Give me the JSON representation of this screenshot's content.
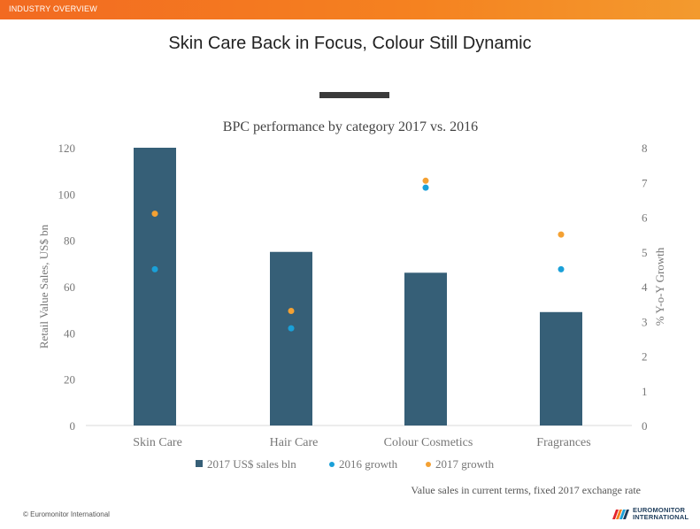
{
  "header": {
    "section_label": "INDUSTRY OVERVIEW"
  },
  "slide": {
    "title": "Skin Care Back in Focus, Colour Still Dynamic"
  },
  "colors": {
    "bar": "#365f77",
    "growth_2016": "#1aa0d8",
    "growth_2017": "#f4a133",
    "banner": "#f26a21",
    "axis_text": "#777777"
  },
  "chart_data": {
    "type": "bar",
    "title": "BPC performance by category 2017 vs. 2016",
    "categories": [
      "Skin Care",
      "Hair Care",
      "Colour Cosmetics",
      "Fragrances"
    ],
    "series": [
      {
        "name": "2017 US$ sales bln",
        "type": "bar",
        "axis": "left",
        "values": [
          120,
          75,
          66,
          49
        ]
      },
      {
        "name": "2016 growth",
        "type": "scatter",
        "axis": "right",
        "values": [
          4.5,
          2.8,
          6.85,
          4.5
        ]
      },
      {
        "name": "2017 growth",
        "type": "scatter",
        "axis": "right",
        "values": [
          6.1,
          3.3,
          7.05,
          5.5
        ]
      }
    ],
    "ylabel": "Retail Value Sales, US$  bn",
    "y2label": "% Y-o-Y Growth",
    "ylim": [
      0,
      120
    ],
    "y2lim": [
      0,
      8
    ],
    "yticks": [
      "0",
      "20",
      "40",
      "60",
      "80",
      "100",
      "120"
    ],
    "y2ticks": [
      "0",
      "1",
      "2",
      "3",
      "4",
      "5",
      "6",
      "7",
      "8"
    ],
    "legend_position": "bottom",
    "grid": false,
    "note": "Value sales in current terms, fixed 2017 exchange rate"
  },
  "footer": {
    "copyright": "© Euromonitor International",
    "logo_line1": "EUROMONITOR",
    "logo_line2": "INTERNATIONAL"
  }
}
